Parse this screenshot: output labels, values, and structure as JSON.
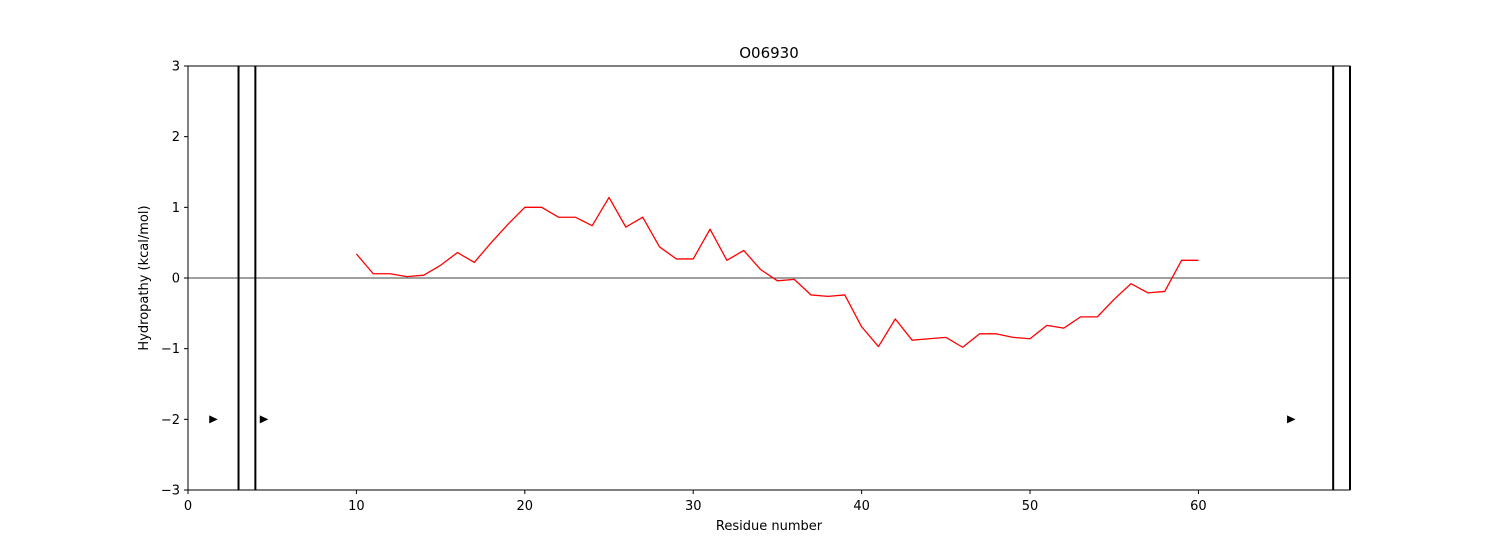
{
  "chart_data": {
    "type": "line",
    "title": "O06930",
    "xlabel": "Residue number",
    "ylabel": "Hydropathy (kcal/mol)",
    "xlim": [
      0,
      69
    ],
    "ylim": [
      -3,
      3
    ],
    "x_ticks": [
      0,
      10,
      20,
      30,
      40,
      50,
      60
    ],
    "y_ticks": [
      -3,
      -2,
      -1,
      0,
      1,
      2,
      3
    ],
    "x_tick_labels": [
      "0",
      "10",
      "20",
      "30",
      "40",
      "50",
      "60"
    ],
    "y_tick_labels": [
      "−3",
      "−2",
      "−1",
      "0",
      "1",
      "2",
      "3"
    ],
    "grid": false,
    "zero_line": true,
    "series": [
      {
        "color": "#ff0000",
        "x": [
          10,
          11,
          12,
          13,
          14,
          15,
          16,
          17,
          18,
          19,
          20,
          21,
          22,
          23,
          24,
          25,
          26,
          27,
          28,
          29,
          30,
          31,
          32,
          33,
          34,
          35,
          36,
          37,
          38,
          39,
          40,
          41,
          42,
          43,
          44,
          45,
          46,
          47,
          48,
          49,
          50,
          51,
          52,
          53,
          54,
          55,
          56,
          57,
          58,
          59,
          60
        ],
        "y": [
          0.34,
          0.06,
          0.06,
          0.02,
          0.04,
          0.18,
          0.36,
          0.22,
          0.5,
          0.76,
          1.0,
          1.0,
          0.86,
          0.86,
          0.74,
          1.14,
          0.72,
          0.86,
          0.44,
          0.27,
          0.27,
          0.69,
          0.25,
          0.39,
          0.12,
          -0.04,
          -0.02,
          -0.24,
          -0.26,
          -0.24,
          -0.69,
          -0.97,
          -0.58,
          -0.88,
          -0.86,
          -0.84,
          -0.98,
          -0.79,
          -0.79,
          -0.84,
          -0.86,
          -0.67,
          -0.71,
          -0.55,
          -0.55,
          -0.3,
          -0.08,
          -0.21,
          -0.19,
          0.25,
          0.25
        ]
      }
    ],
    "vertical_lines": [
      3,
      4,
      68,
      69
    ],
    "markers": [
      {
        "x": 1.5,
        "y": -2,
        "shape": "triangle-right"
      },
      {
        "x": 4.5,
        "y": -2,
        "shape": "triangle-right"
      },
      {
        "x": 65.5,
        "y": -2,
        "shape": "triangle-right"
      }
    ]
  }
}
